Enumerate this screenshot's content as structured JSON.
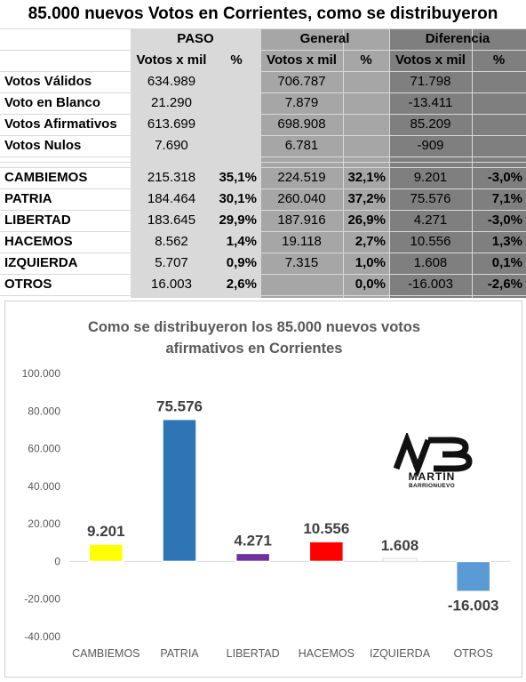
{
  "title": "85.000 nuevos Votos en Corrientes, como se distribuyeron",
  "table": {
    "groups": [
      "PASO",
      "General",
      "Diferencia"
    ],
    "subheaders": [
      "Votos x mil",
      "%",
      "Votos x mil",
      "%",
      "Votos x mil",
      "%"
    ],
    "rows": [
      {
        "label": "Votos Válidos",
        "bold": false,
        "cells": [
          "634.989",
          "",
          "706.787",
          "",
          "71.798",
          ""
        ]
      },
      {
        "label": "Voto en Blanco",
        "bold": false,
        "cells": [
          "21.290",
          "",
          "7.879",
          "",
          "-13.411",
          ""
        ]
      },
      {
        "label": "Votos Afirmativos",
        "bold": false,
        "cells": [
          "613.699",
          "",
          "698.908",
          "",
          "85.209",
          ""
        ]
      },
      {
        "label": "Votos Nulos",
        "bold": false,
        "cells": [
          "7.690",
          "",
          "6.781",
          "",
          "-909",
          ""
        ]
      },
      {
        "label": "CAMBIEMOS",
        "bold": true,
        "cells": [
          "215.318",
          "35,1%",
          "224.519",
          "32,1%",
          "9.201",
          "-3,0%"
        ]
      },
      {
        "label": "PATRIA",
        "bold": true,
        "cells": [
          "184.464",
          "30,1%",
          "260.040",
          "37,2%",
          "75.576",
          "7,1%"
        ]
      },
      {
        "label": "LIBERTAD",
        "bold": true,
        "cells": [
          "183.645",
          "29,9%",
          "187.916",
          "26,9%",
          "4.271",
          "-3,0%"
        ]
      },
      {
        "label": "HACEMOS",
        "bold": true,
        "cells": [
          "8.562",
          "1,4%",
          "19.118",
          "2,7%",
          "10.556",
          "1,3%"
        ]
      },
      {
        "label": "IZQUIERDA",
        "bold": true,
        "cells": [
          "5.707",
          "0,9%",
          "7.315",
          "1,0%",
          "1.608",
          "0,1%"
        ]
      },
      {
        "label": "OTROS",
        "bold": true,
        "cells": [
          "16.003",
          "2,6%",
          "",
          "0,0%",
          "-16.003",
          "-2,6%"
        ]
      }
    ]
  },
  "colors": {
    "paso_bg": "#d9d9d9",
    "general_bg": "#a6a6a6",
    "diferencia_bg": "#7f7f7f"
  },
  "logo": {
    "mark": "MB",
    "line1": "MARTÍN",
    "line2": "BARRIONUEVO"
  },
  "chart_data": {
    "type": "bar",
    "title": "Como se distribuyeron los 85.000 nuevos votos afirmativos en Corrientes",
    "title_lines": [
      "Como se distribuyeron los 85.000 nuevos votos",
      "afirmativos en Corrientes"
    ],
    "categories": [
      "CAMBIEMOS",
      "PATRIA",
      "LIBERTAD",
      "HACEMOS",
      "IZQUIERDA",
      "OTROS"
    ],
    "values": [
      9201,
      75576,
      4271,
      10556,
      1608,
      -16003
    ],
    "value_labels": [
      "9.201",
      "75.576",
      "4.271",
      "10.556",
      "1.608",
      "-16.003"
    ],
    "colors": [
      "#ffff00",
      "#2e75b6",
      "#7030a0",
      "#ff0000",
      "#ffffff",
      "#5b9bd5"
    ],
    "ylim": [
      -40000,
      100000
    ],
    "yticks": [
      100000,
      80000,
      60000,
      40000,
      20000,
      0,
      -20000,
      -40000
    ],
    "ytick_labels": [
      "100.000",
      "80.000",
      "60.000",
      "40.000",
      "20.000",
      "0",
      "-20.000",
      "-40.000"
    ],
    "xlabel": "",
    "ylabel": "",
    "grid": false,
    "legend": "none"
  }
}
